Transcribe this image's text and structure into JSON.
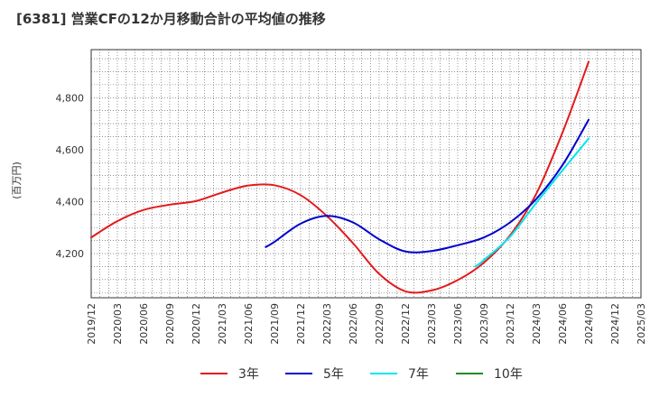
{
  "title": "[6381]  営業CFの12か月移動合計の平均値の推移",
  "chart_data": {
    "type": "line",
    "title": "[6381]  営業CFの12か月移動合計の平均値の推移",
    "ylabel": "(百万円)",
    "xlabel": "",
    "x_ticks": [
      "2019/12",
      "2020/03",
      "2020/06",
      "2020/09",
      "2020/12",
      "2021/03",
      "2021/06",
      "2021/09",
      "2021/12",
      "2022/03",
      "2022/06",
      "2022/09",
      "2022/12",
      "2023/03",
      "2023/06",
      "2023/09",
      "2023/12",
      "2024/03",
      "2024/06",
      "2024/09",
      "2024/12",
      "2025/03"
    ],
    "y_ticks": [
      4200,
      4400,
      4600,
      4800
    ],
    "y_tick_labels": [
      "4,200",
      "4,400",
      "4,600",
      "4,800"
    ],
    "ylim": [
      4030,
      4985
    ],
    "grid": true,
    "legend_position": "bottom",
    "colors": {
      "3y": "#e31a1c",
      "5y": "#0000cd",
      "7y": "#00e5ee",
      "10y": "#228b22"
    },
    "series": [
      {
        "name": "3年",
        "color": "#e31a1c",
        "points": [
          [
            "2019/12",
            4262
          ],
          [
            "2020/03",
            4325
          ],
          [
            "2020/06",
            4368
          ],
          [
            "2020/09",
            4388
          ],
          [
            "2020/12",
            4402
          ],
          [
            "2021/03",
            4435
          ],
          [
            "2021/06",
            4462
          ],
          [
            "2021/09",
            4463
          ],
          [
            "2021/12",
            4425
          ],
          [
            "2022/03",
            4345
          ],
          [
            "2022/06",
            4240
          ],
          [
            "2022/09",
            4122
          ],
          [
            "2022/12",
            4055
          ],
          [
            "2023/03",
            4058
          ],
          [
            "2023/06",
            4098
          ],
          [
            "2023/09",
            4165
          ],
          [
            "2023/12",
            4270
          ],
          [
            "2024/03",
            4430
          ],
          [
            "2024/06",
            4665
          ],
          [
            "2024/09",
            4938
          ]
        ]
      },
      {
        "name": "5年",
        "color": "#0000cd",
        "points": [
          [
            "2021/08",
            4225
          ],
          [
            "2021/09",
            4245
          ],
          [
            "2021/12",
            4315
          ],
          [
            "2022/03",
            4345
          ],
          [
            "2022/06",
            4320
          ],
          [
            "2022/09",
            4255
          ],
          [
            "2022/12",
            4208
          ],
          [
            "2023/03",
            4210
          ],
          [
            "2023/06",
            4232
          ],
          [
            "2023/09",
            4262
          ],
          [
            "2023/12",
            4320
          ],
          [
            "2024/03",
            4410
          ],
          [
            "2024/06",
            4540
          ],
          [
            "2024/09",
            4715
          ]
        ]
      },
      {
        "name": "7年",
        "color": "#00e5ee",
        "points": [
          [
            "2023/08",
            4150
          ],
          [
            "2023/09",
            4175
          ],
          [
            "2023/12",
            4265
          ],
          [
            "2024/03",
            4395
          ],
          [
            "2024/06",
            4520
          ],
          [
            "2024/09",
            4643
          ]
        ]
      },
      {
        "name": "10年",
        "color": "#228b22",
        "points": []
      }
    ]
  }
}
